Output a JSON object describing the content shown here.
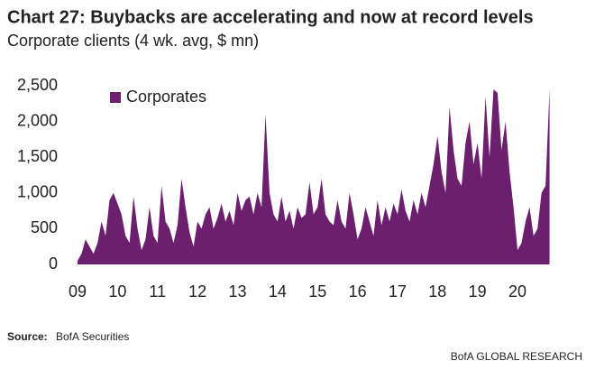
{
  "chart_data": {
    "type": "area",
    "title": "Chart 27: Buybacks are accelerating and now at record levels",
    "subtitle": "Corporate clients (4 wk. avg, $ mn)",
    "source_label": "Source:",
    "source": "BofA Securities",
    "footer": "BofA GLOBAL RESEARCH",
    "legend": "upper left",
    "xlim": [
      2009,
      2020.9
    ],
    "xticks": [
      {
        "value": 2009,
        "label": "09"
      },
      {
        "value": 2010,
        "label": "10"
      },
      {
        "value": 2011,
        "label": "11"
      },
      {
        "value": 2012,
        "label": "12"
      },
      {
        "value": 2013,
        "label": "13"
      },
      {
        "value": 2014,
        "label": "14"
      },
      {
        "value": 2015,
        "label": "15"
      },
      {
        "value": 2016,
        "label": "16"
      },
      {
        "value": 2017,
        "label": "17"
      },
      {
        "value": 2018,
        "label": "18"
      },
      {
        "value": 2019,
        "label": "19"
      },
      {
        "value": 2020,
        "label": "20"
      }
    ],
    "ylim": [
      0,
      2500
    ],
    "yticks": [
      0,
      500,
      {
        "value": 1000,
        "label": "1,000"
      },
      {
        "value": 1500,
        "label": "1,500"
      },
      {
        "value": 2000,
        "label": "2,000"
      },
      {
        "value": 2500,
        "label": "2,500"
      }
    ],
    "x": [
      2009.0,
      2009.1,
      2009.2,
      2009.3,
      2009.4,
      2009.5,
      2009.6,
      2009.7,
      2009.8,
      2009.9,
      2010.0,
      2010.1,
      2010.2,
      2010.3,
      2010.4,
      2010.5,
      2010.6,
      2010.7,
      2010.8,
      2010.9,
      2011.0,
      2011.1,
      2011.2,
      2011.3,
      2011.4,
      2011.5,
      2011.6,
      2011.7,
      2011.8,
      2011.9,
      2012.0,
      2012.1,
      2012.2,
      2012.3,
      2012.4,
      2012.5,
      2012.6,
      2012.7,
      2012.8,
      2012.9,
      2013.0,
      2013.1,
      2013.2,
      2013.3,
      2013.4,
      2013.5,
      2013.6,
      2013.7,
      2013.8,
      2013.9,
      2014.0,
      2014.1,
      2014.2,
      2014.3,
      2014.4,
      2014.5,
      2014.6,
      2014.7,
      2014.8,
      2014.9,
      2015.0,
      2015.1,
      2015.2,
      2015.3,
      2015.4,
      2015.5,
      2015.6,
      2015.7,
      2015.8,
      2015.9,
      2016.0,
      2016.1,
      2016.2,
      2016.3,
      2016.4,
      2016.5,
      2016.6,
      2016.7,
      2016.8,
      2016.9,
      2017.0,
      2017.1,
      2017.2,
      2017.3,
      2017.4,
      2017.5,
      2017.6,
      2017.7,
      2017.8,
      2017.9,
      2018.0,
      2018.1,
      2018.2,
      2018.3,
      2018.4,
      2018.5,
      2018.6,
      2018.7,
      2018.8,
      2018.9,
      2019.0,
      2019.1,
      2019.2,
      2019.3,
      2019.4,
      2019.5,
      2019.6,
      2019.7,
      2019.8,
      2019.9,
      2020.0,
      2020.1,
      2020.2,
      2020.3,
      2020.4,
      2020.5,
      2020.6,
      2020.7,
      2020.8
    ],
    "series": [
      {
        "name": "Corporates",
        "color": "#6b1f6e",
        "values": [
          50,
          150,
          350,
          250,
          150,
          300,
          600,
          400,
          900,
          1000,
          850,
          700,
          400,
          300,
          950,
          500,
          200,
          350,
          800,
          400,
          300,
          1100,
          600,
          500,
          300,
          550,
          1200,
          800,
          450,
          250,
          600,
          500,
          700,
          800,
          500,
          650,
          850,
          600,
          750,
          550,
          1000,
          750,
          900,
          950,
          700,
          1000,
          800,
          2100,
          1000,
          700,
          600,
          950,
          600,
          750,
          500,
          800,
          650,
          700,
          1150,
          700,
          800,
          1200,
          700,
          600,
          550,
          900,
          600,
          500,
          1000,
          700,
          350,
          500,
          800,
          600,
          400,
          900,
          550,
          800,
          600,
          850,
          700,
          1050,
          750,
          600,
          900,
          700,
          1000,
          800,
          1100,
          1400,
          1800,
          1300,
          1000,
          2200,
          1600,
          1200,
          1100,
          1700,
          2000,
          1400,
          1700,
          1200,
          2350,
          1500,
          2450,
          2400,
          1600,
          2000,
          1300,
          800,
          200,
          300,
          600,
          800,
          400,
          500,
          1000,
          1100,
          2450
        ]
      }
    ]
  }
}
